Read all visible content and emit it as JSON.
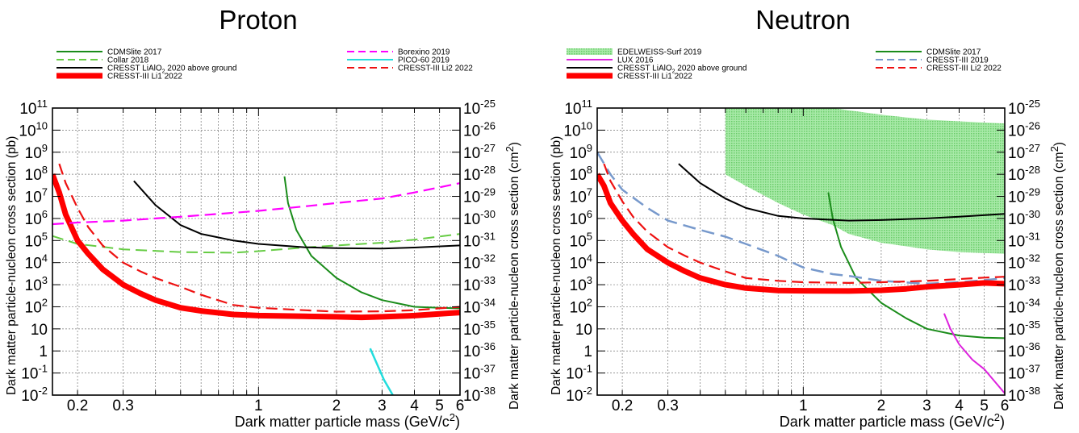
{
  "chart_data": [
    {
      "type": "line",
      "title": "Proton",
      "xlabel": "Dark matter particle mass (GeV/c",
      "xlabel_sup": "2",
      "xlabel_end": ")",
      "ylabel": "Dark matter particle-nucleon cross section (pb)",
      "y2label": "Dark matter particle-nucleon cross section (cm",
      "y2label_sup": "2",
      "y2label_end": ")",
      "xscale": "log",
      "yscale": "log",
      "xlim": [
        0.16,
        6
      ],
      "ylim": [
        0.01,
        100000000000.0
      ],
      "y2lim": [
        1e-38,
        1e-25
      ],
      "grid": true,
      "xticks": [
        {
          "v": 0.2,
          "label": "0.2"
        },
        {
          "v": 0.3,
          "label": "0.3"
        },
        {
          "v": 1,
          "label": "1"
        },
        {
          "v": 2,
          "label": "2"
        },
        {
          "v": 3,
          "label": "3"
        },
        {
          "v": 4,
          "label": "4"
        },
        {
          "v": 5,
          "label": "5"
        },
        {
          "v": 6,
          "label": "6"
        }
      ],
      "yticks": [
        {
          "e": -2,
          "base": "10",
          "exp": "-2"
        },
        {
          "e": -1,
          "base": "10",
          "exp": "-1"
        },
        {
          "e": 0,
          "base": "1",
          "exp": ""
        },
        {
          "e": 1,
          "base": "10",
          "exp": ""
        },
        {
          "e": 2,
          "base": "10",
          "exp": "2"
        },
        {
          "e": 3,
          "base": "10",
          "exp": "3"
        },
        {
          "e": 4,
          "base": "10",
          "exp": "4"
        },
        {
          "e": 5,
          "base": "10",
          "exp": "5"
        },
        {
          "e": 6,
          "base": "10",
          "exp": "6"
        },
        {
          "e": 7,
          "base": "10",
          "exp": "7"
        },
        {
          "e": 8,
          "base": "10",
          "exp": "8"
        },
        {
          "e": 9,
          "base": "10",
          "exp": "9"
        },
        {
          "e": 10,
          "base": "10",
          "exp": "10"
        },
        {
          "e": 11,
          "base": "10",
          "exp": "11"
        }
      ],
      "y2ticks": [
        {
          "e": -38,
          "base": "10",
          "exp": "-38"
        },
        {
          "e": -37,
          "base": "10",
          "exp": "-37"
        },
        {
          "e": -36,
          "base": "10",
          "exp": "-36"
        },
        {
          "e": -35,
          "base": "10",
          "exp": "-35"
        },
        {
          "e": -34,
          "base": "10",
          "exp": "-34"
        },
        {
          "e": -33,
          "base": "10",
          "exp": "-33"
        },
        {
          "e": -32,
          "base": "10",
          "exp": "-32"
        },
        {
          "e": -31,
          "base": "10",
          "exp": "-31"
        },
        {
          "e": -30,
          "base": "10",
          "exp": "-30"
        },
        {
          "e": -29,
          "base": "10",
          "exp": "-29"
        },
        {
          "e": -28,
          "base": "10",
          "exp": "-28"
        },
        {
          "e": -27,
          "base": "10",
          "exp": "-27"
        },
        {
          "e": -26,
          "base": "10",
          "exp": "-26"
        },
        {
          "e": -25,
          "base": "10",
          "exp": "-25"
        }
      ],
      "legend": [
        {
          "col": 0,
          "row": 0,
          "text": "CDMSlite 2017",
          "color": "#1a8c1a",
          "dash": "",
          "width": 2,
          "kind": "line"
        },
        {
          "col": 0,
          "row": 1,
          "text": "Collar 2018",
          "color": "#66cc44",
          "dash": "9,5",
          "width": 2,
          "kind": "line"
        },
        {
          "col": 0,
          "row": 2,
          "text": "CRESST LiAlO",
          "sub": "2",
          "text_end": " 2020 above ground",
          "color": "#000000",
          "dash": "",
          "width": 2,
          "kind": "line"
        },
        {
          "col": 0,
          "row": 3,
          "text": "CRESST-III Li1 2022",
          "color": "#ff0000",
          "dash": "",
          "width": 7,
          "kind": "line"
        },
        {
          "col": 1,
          "row": 0,
          "text": "Borexino 2019",
          "color": "#ff00ff",
          "dash": "9,5",
          "width": 2,
          "kind": "line"
        },
        {
          "col": 1,
          "row": 1,
          "text": "PICO-60 2019",
          "color": "#22dddd",
          "dash": "",
          "width": 2,
          "kind": "line"
        },
        {
          "col": 1,
          "row": 2,
          "text": "CRESST-III Li2 2022",
          "color": "#ee1111",
          "dash": "9,5",
          "width": 2,
          "kind": "line"
        }
      ],
      "series": [
        {
          "name": "CDMSlite 2017",
          "color": "#1a8c1a",
          "dash": "",
          "width": 2,
          "x": [
            1.26,
            1.3,
            1.4,
            1.6,
            2.0,
            2.5,
            3.0,
            4.0,
            5.0,
            6.0
          ],
          "y": [
            80000000.0,
            5000000.0,
            300000.0,
            20000.0,
            2000.0,
            450,
            200,
            100,
            90,
            85
          ]
        },
        {
          "name": "Collar 2018",
          "color": "#66cc44",
          "dash": "14,7",
          "width": 2,
          "x": [
            0.16,
            0.2,
            0.3,
            0.5,
            0.8,
            1.0,
            1.5,
            2.0,
            3.0,
            4.0,
            6.0
          ],
          "y": [
            160000.0,
            70000.0,
            40000.0,
            30000.0,
            28000.0,
            33000.0,
            48000.0,
            60000.0,
            80000.0,
            110000.0,
            200000.0
          ]
        },
        {
          "name": "CRESST LiAlO2 2020 above ground",
          "color": "#000000",
          "dash": "",
          "width": 2,
          "x": [
            0.33,
            0.4,
            0.5,
            0.6,
            0.8,
            1.0,
            1.5,
            2.0,
            3.0,
            4.0,
            6.0
          ],
          "y": [
            50000000.0,
            4000000.0,
            500000.0,
            200000.0,
            100000.0,
            70000.0,
            50000.0,
            45000.0,
            43000.0,
            48000.0,
            60000.0
          ]
        },
        {
          "name": "CRESST-III Li1 2022",
          "color": "#ff0000",
          "dash": "",
          "width": 7,
          "x": [
            0.16,
            0.17,
            0.18,
            0.2,
            0.22,
            0.25,
            0.3,
            0.35,
            0.4,
            0.5,
            0.6,
            0.8,
            1.0,
            1.5,
            2.0,
            2.5,
            3.0,
            4.0,
            5.0,
            6.0
          ],
          "y": [
            100000000.0,
            15000000.0,
            1500000.0,
            100000.0,
            25000.0,
            5000.0,
            1000.0,
            400,
            200,
            90,
            65,
            45,
            40,
            37,
            35,
            33,
            35,
            40,
            48,
            55
          ]
        },
        {
          "name": "CRESST-III Li2 2022",
          "color": "#ee1111",
          "dash": "14,7",
          "width": 2.2,
          "x": [
            0.17,
            0.18,
            0.2,
            0.22,
            0.25,
            0.3,
            0.35,
            0.4,
            0.5,
            0.6,
            0.8,
            1.0,
            1.5,
            2.0,
            3.0,
            4.0,
            5.0,
            6.0
          ],
          "y": [
            300000000.0,
            40000000.0,
            3000000.0,
            400000.0,
            60000.0,
            10000.0,
            4000.0,
            2000.0,
            800,
            350,
            120,
            90,
            70,
            60,
            62,
            70,
            85,
            100
          ]
        },
        {
          "name": "Borexino 2019",
          "color": "#ff00ff",
          "dash": "14,7",
          "width": 2.2,
          "x": [
            0.16,
            0.2,
            0.3,
            0.5,
            0.8,
            1.0,
            1.5,
            2.0,
            3.0,
            4.0,
            6.0
          ],
          "y": [
            550000.0,
            650000.0,
            800000.0,
            1200000.0,
            1800000.0,
            2200000.0,
            3500000.0,
            5000000.0,
            8000000.0,
            15000000.0,
            40000000.0
          ]
        },
        {
          "name": "PICO-60 2019",
          "color": "#22dddd",
          "dash": "",
          "width": 2.5,
          "x": [
            2.7,
            2.85,
            3.05,
            3.3
          ],
          "y": [
            1.3,
            0.3,
            0.05,
            0.01
          ]
        }
      ]
    },
    {
      "type": "line",
      "title": "Neutron",
      "xlabel": "Dark matter particle mass (GeV/c",
      "xlabel_sup": "2",
      "xlabel_end": ")",
      "ylabel": "Dark matter particle-nucleon cross section (pb)",
      "y2label": "Dark matter particle-nucleon cross section (cm",
      "y2label_sup": "2",
      "y2label_end": ")",
      "xscale": "log",
      "yscale": "log",
      "xlim": [
        0.16,
        6
      ],
      "ylim": [
        0.01,
        100000000000.0
      ],
      "y2lim": [
        1e-38,
        1e-25
      ],
      "grid": true,
      "xticks": [
        {
          "v": 0.2,
          "label": "0.2"
        },
        {
          "v": 0.3,
          "label": "0.3"
        },
        {
          "v": 1,
          "label": "1"
        },
        {
          "v": 2,
          "label": "2"
        },
        {
          "v": 3,
          "label": "3"
        },
        {
          "v": 4,
          "label": "4"
        },
        {
          "v": 5,
          "label": "5"
        },
        {
          "v": 6,
          "label": "6"
        }
      ],
      "yticks": [
        {
          "e": -2,
          "base": "10",
          "exp": "-2"
        },
        {
          "e": -1,
          "base": "10",
          "exp": "-1"
        },
        {
          "e": 0,
          "base": "1",
          "exp": ""
        },
        {
          "e": 1,
          "base": "10",
          "exp": ""
        },
        {
          "e": 2,
          "base": "10",
          "exp": "2"
        },
        {
          "e": 3,
          "base": "10",
          "exp": "3"
        },
        {
          "e": 4,
          "base": "10",
          "exp": "4"
        },
        {
          "e": 5,
          "base": "10",
          "exp": "5"
        },
        {
          "e": 6,
          "base": "10",
          "exp": "6"
        },
        {
          "e": 7,
          "base": "10",
          "exp": "7"
        },
        {
          "e": 8,
          "base": "10",
          "exp": "8"
        },
        {
          "e": 9,
          "base": "10",
          "exp": "9"
        },
        {
          "e": 10,
          "base": "10",
          "exp": "10"
        },
        {
          "e": 11,
          "base": "10",
          "exp": "11"
        }
      ],
      "y2ticks": [
        {
          "e": -38,
          "base": "10",
          "exp": "-38"
        },
        {
          "e": -37,
          "base": "10",
          "exp": "-37"
        },
        {
          "e": -36,
          "base": "10",
          "exp": "-36"
        },
        {
          "e": -35,
          "base": "10",
          "exp": "-35"
        },
        {
          "e": -34,
          "base": "10",
          "exp": "-34"
        },
        {
          "e": -33,
          "base": "10",
          "exp": "-33"
        },
        {
          "e": -32,
          "base": "10",
          "exp": "-32"
        },
        {
          "e": -31,
          "base": "10",
          "exp": "-31"
        },
        {
          "e": -30,
          "base": "10",
          "exp": "-30"
        },
        {
          "e": -29,
          "base": "10",
          "exp": "-29"
        },
        {
          "e": -28,
          "base": "10",
          "exp": "-28"
        },
        {
          "e": -27,
          "base": "10",
          "exp": "-27"
        },
        {
          "e": -26,
          "base": "10",
          "exp": "-26"
        },
        {
          "e": -25,
          "base": "10",
          "exp": "-25"
        }
      ],
      "legend": [
        {
          "col": 0,
          "row": 0,
          "text": "EDELWEISS-Surf 2019",
          "color": "#88dd88",
          "dash": "",
          "width": 8,
          "kind": "box"
        },
        {
          "col": 0,
          "row": 1,
          "text": "LUX 2016",
          "color": "#dd22dd",
          "dash": "",
          "width": 2,
          "kind": "line"
        },
        {
          "col": 0,
          "row": 2,
          "text": "CRESST LiAlO",
          "sub": "2",
          "text_end": " 2020 above ground",
          "color": "#000000",
          "dash": "",
          "width": 2,
          "kind": "line"
        },
        {
          "col": 0,
          "row": 3,
          "text": "CRESST-III Li1 2022",
          "color": "#ff0000",
          "dash": "",
          "width": 7,
          "kind": "line"
        },
        {
          "col": 1,
          "row": 0,
          "text": "CDMSlite 2017",
          "color": "#1a8c1a",
          "dash": "",
          "width": 2,
          "kind": "line"
        },
        {
          "col": 1,
          "row": 1,
          "text": "CRESST-III 2019",
          "color": "#7799cc",
          "dash": "9,5",
          "width": 2,
          "kind": "line"
        },
        {
          "col": 1,
          "row": 2,
          "text": "CRESST-III Li2 2022",
          "color": "#ee1111",
          "dash": "9,5",
          "width": 2,
          "kind": "line"
        }
      ],
      "regions": [
        {
          "name": "EDELWEISS-Surf 2019",
          "color": "#88dd88",
          "x": [
            0.5,
            0.6,
            0.8,
            1.0,
            1.3,
            1.5,
            2.0,
            3.0,
            4.0,
            6.0
          ],
          "y_low": [
            100000000.0,
            30000000.0,
            5000000.0,
            1500000.0,
            500000.0,
            200000.0,
            80000.0,
            40000.0,
            30000.0,
            25000.0
          ],
          "y_high": [
            100000000000.0,
            100000000000.0,
            100000000000.0,
            100000000000.0,
            100000000000.0,
            80000000000.0,
            50000000000.0,
            30000000000.0,
            25000000000.0,
            20000000000.0
          ]
        }
      ],
      "series": [
        {
          "name": "CDMSlite 2017",
          "color": "#1a8c1a",
          "dash": "",
          "width": 2,
          "x": [
            1.25,
            1.3,
            1.4,
            1.6,
            2.0,
            2.5,
            3.0,
            4.0,
            5.0,
            6.0
          ],
          "y": [
            15000000.0,
            1000000.0,
            50000.0,
            2000.0,
            150,
            30,
            10,
            5,
            4,
            3.8
          ]
        },
        {
          "name": "LUX 2016",
          "color": "#dd22dd",
          "dash": "",
          "width": 2,
          "x": [
            3.5,
            3.7,
            4.0,
            4.5,
            5.0,
            5.5,
            6.0
          ],
          "y": [
            50,
            10,
            2,
            0.4,
            0.15,
            0.04,
            0.012
          ]
        },
        {
          "name": "CRESST LiAlO2 2020 above ground",
          "color": "#000000",
          "dash": "",
          "width": 2,
          "x": [
            0.33,
            0.4,
            0.5,
            0.6,
            0.8,
            1.0,
            1.5,
            2.0,
            3.0,
            4.0,
            6.0
          ],
          "y": [
            300000000.0,
            40000000.0,
            8000000.0,
            3000000.0,
            1300000.0,
            1000000.0,
            800000.0,
            850000.0,
            1000000.0,
            1200000.0,
            1600000.0
          ]
        },
        {
          "name": "CRESST-III 2019",
          "color": "#7799cc",
          "dash": "16,8",
          "width": 2.5,
          "x": [
            0.16,
            0.18,
            0.2,
            0.25,
            0.3,
            0.4,
            0.5,
            0.6,
            0.8,
            1.0,
            1.3,
            1.5,
            2.0,
            3.0,
            4.0,
            5.0,
            6.0
          ],
          "y": [
            1000000000.0,
            100000000.0,
            20000000.0,
            3000000.0,
            800000.0,
            300000.0,
            150000.0,
            70000.0,
            20000.0,
            6000.0,
            3000.0,
            2500.0,
            1500.0,
            1100.0,
            1300.0,
            1600.0,
            2000.0
          ]
        },
        {
          "name": "CRESST-III Li1 2022",
          "color": "#ff0000",
          "dash": "",
          "width": 7,
          "x": [
            0.16,
            0.17,
            0.18,
            0.2,
            0.22,
            0.25,
            0.3,
            0.35,
            0.4,
            0.5,
            0.6,
            0.8,
            1.0,
            1.5,
            2.0,
            2.5,
            3.0,
            4.0,
            5.0,
            6.0
          ],
          "y": [
            100000000.0,
            30000000.0,
            5000000.0,
            800000.0,
            200000.0,
            40000.0,
            10000.0,
            4000.0,
            2000.0,
            1000.0,
            700,
            550,
            530,
            520,
            560,
            650,
            800,
            1000.0,
            1200.0,
            1100.0
          ]
        },
        {
          "name": "CRESST-III Li2 2022",
          "color": "#ee1111",
          "dash": "14,7",
          "width": 2.2,
          "x": [
            0.17,
            0.18,
            0.2,
            0.22,
            0.25,
            0.3,
            0.35,
            0.4,
            0.5,
            0.6,
            0.8,
            1.0,
            1.5,
            2.0,
            3.0,
            4.0,
            5.0,
            6.0
          ],
          "y": [
            300000000.0,
            50000000.0,
            6000000.0,
            1200000.0,
            250000.0,
            50000.0,
            20000.0,
            10000.0,
            4000.0,
            2000.0,
            1500.0,
            1300.0,
            1200.0,
            1300.0,
            1500.0,
            1800.0,
            2100.0,
            2300.0
          ]
        }
      ]
    }
  ]
}
